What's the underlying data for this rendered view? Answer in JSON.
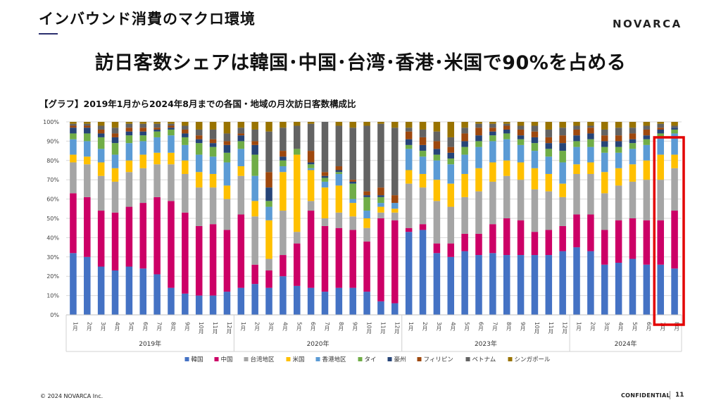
{
  "header": {
    "section_title": "インバウンド消費のマクロ環境",
    "logo": "NOVARCA",
    "headline": "訪日客数シェアは韓国･中国･台湾･香港･米国で90%を占める"
  },
  "footer": {
    "copyright": "© 2024 NOVARCA Inc.",
    "confidential": "CONFIDENTIAL",
    "page_number": "11"
  },
  "chart_data": {
    "type": "bar",
    "stacked": true,
    "percent": true,
    "title": "【グラフ】2019年1月から2024年8月までの各国・地域の月次訪日客数構成比",
    "y_ticks": [
      "0%",
      "10%",
      "20%",
      "30%",
      "40%",
      "50%",
      "60%",
      "70%",
      "80%",
      "90%",
      "100%"
    ],
    "ylim": [
      0,
      100
    ],
    "legend_position": "bottom",
    "categories": [
      "1月",
      "2月",
      "3月",
      "4月",
      "5月",
      "6月",
      "7月",
      "8月",
      "9月",
      "10月",
      "11月",
      "12月",
      "1月",
      "2月",
      "3月",
      "4月",
      "5月",
      "6月",
      "7月",
      "8月",
      "9月",
      "10月",
      "11月",
      "12月",
      "1月",
      "2月",
      "3月",
      "4月",
      "5月",
      "6月",
      "7月",
      "8月",
      "9月",
      "10月",
      "11月",
      "12月",
      "1月",
      "2月",
      "3月",
      "4月",
      "5月",
      "6月",
      "7月",
      "8月"
    ],
    "groups": [
      {
        "label": "2019年",
        "count": 12
      },
      {
        "label": "2020年",
        "count": 12
      },
      {
        "label": "2023年",
        "count": 12
      },
      {
        "label": "2024年",
        "count": 8
      }
    ],
    "series": [
      {
        "name": "韓国",
        "color": "#4472c4",
        "values": [
          32,
          30,
          25,
          23,
          25,
          24,
          21,
          14,
          11,
          10,
          10,
          12,
          14,
          16,
          14,
          20,
          15,
          14,
          12,
          14,
          14,
          12,
          7,
          6,
          43,
          44,
          32,
          30,
          33,
          31,
          32,
          31,
          31,
          31,
          31,
          33,
          35,
          33,
          26,
          27,
          29,
          26,
          26,
          24
        ]
      },
      {
        "name": "中国",
        "color": "#cc0066",
        "values": [
          31,
          31,
          29,
          30,
          31,
          34,
          40,
          45,
          42,
          36,
          37,
          32,
          38,
          10,
          9,
          11,
          22,
          40,
          34,
          31,
          30,
          26,
          43,
          43,
          2,
          3,
          5,
          7,
          9,
          11,
          15,
          19,
          18,
          12,
          13,
          13,
          17,
          19,
          18,
          22,
          21,
          23,
          23,
          30
        ]
      },
      {
        "name": "台湾地区",
        "color": "#a5a5a5",
        "values": [
          16,
          17,
          18,
          16,
          18,
          18,
          17,
          19,
          20,
          20,
          19,
          16,
          20,
          25,
          6,
          23,
          6,
          5,
          4,
          8,
          7,
          7,
          3,
          4,
          23,
          19,
          22,
          19,
          19,
          22,
          22,
          22,
          21,
          22,
          20,
          15,
          21,
          21,
          19,
          18,
          19,
          21,
          21,
          22
        ]
      },
      {
        "name": "米国",
        "color": "#ffc000",
        "values": [
          4,
          4,
          7,
          7,
          6,
          7,
          6,
          6,
          7,
          8,
          7,
          7,
          5,
          8,
          20,
          20,
          40,
          16,
          16,
          14,
          7,
          5,
          3,
          2,
          7,
          7,
          11,
          12,
          12,
          12,
          10,
          8,
          9,
          11,
          9,
          7,
          5,
          6,
          11,
          9,
          9,
          10,
          13,
          7
        ]
      },
      {
        "name": "香港地区",
        "color": "#5b9bd5",
        "values": [
          8,
          8,
          7,
          7,
          9,
          7,
          8,
          9,
          8,
          9,
          9,
          12,
          9,
          13,
          7,
          3,
          0,
          1,
          3,
          6,
          2,
          4,
          2,
          3,
          11,
          9,
          10,
          10,
          10,
          11,
          11,
          11,
          9,
          9,
          9,
          11,
          9,
          8,
          10,
          8,
          8,
          8,
          9,
          11
        ]
      },
      {
        "name": "タイ",
        "color": "#70ad47",
        "values": [
          3,
          4,
          6,
          6,
          4,
          3,
          3,
          3,
          4,
          6,
          5,
          5,
          4,
          11,
          3,
          3,
          3,
          2,
          2,
          1,
          8,
          7,
          3,
          0,
          2,
          3,
          3,
          3,
          4,
          3,
          3,
          3,
          3,
          4,
          4,
          6,
          3,
          4,
          3,
          3,
          3,
          3,
          2,
          2
        ]
      },
      {
        "name": "豪州",
        "color": "#264478",
        "values": [
          3,
          3,
          2,
          3,
          2,
          2,
          1,
          1,
          2,
          2,
          2,
          4,
          3,
          5,
          7,
          2,
          0,
          1,
          1,
          1,
          1,
          1,
          1,
          0,
          3,
          3,
          3,
          3,
          3,
          3,
          2,
          2,
          2,
          3,
          3,
          4,
          3,
          3,
          3,
          3,
          2,
          2,
          2,
          1
        ]
      },
      {
        "name": "フィリピン",
        "color": "#9e480e",
        "values": [
          1,
          1,
          2,
          2,
          2,
          2,
          1,
          1,
          2,
          2,
          2,
          2,
          1,
          2,
          8,
          3,
          0,
          6,
          2,
          2,
          1,
          2,
          4,
          4,
          4,
          4,
          4,
          3,
          4,
          4,
          2,
          2,
          3,
          3,
          3,
          4,
          3,
          3,
          3,
          3,
          3,
          3,
          1,
          0
        ]
      },
      {
        "name": "ベトナム",
        "color": "#636363",
        "values": [
          1,
          1,
          2,
          3,
          2,
          2,
          2,
          1,
          2,
          3,
          5,
          4,
          3,
          6,
          21,
          12,
          12,
          14,
          26,
          21,
          27,
          34,
          33,
          35,
          2,
          4,
          5,
          5,
          3,
          2,
          2,
          1,
          2,
          3,
          4,
          4,
          2,
          1,
          3,
          4,
          3,
          2,
          2,
          1
        ]
      },
      {
        "name": "シンガポール",
        "color": "#997300",
        "values": [
          1,
          1,
          2,
          3,
          1,
          1,
          1,
          1,
          2,
          4,
          4,
          6,
          3,
          4,
          5,
          3,
          2,
          1,
          0,
          2,
          3,
          2,
          1,
          3,
          3,
          4,
          5,
          8,
          3,
          1,
          1,
          1,
          2,
          2,
          4,
          3,
          2,
          2,
          4,
          3,
          3,
          2,
          1,
          2
        ]
      }
    ],
    "highlight": {
      "color": "#e30000",
      "categories_from": 42,
      "categories_to": 43
    }
  }
}
